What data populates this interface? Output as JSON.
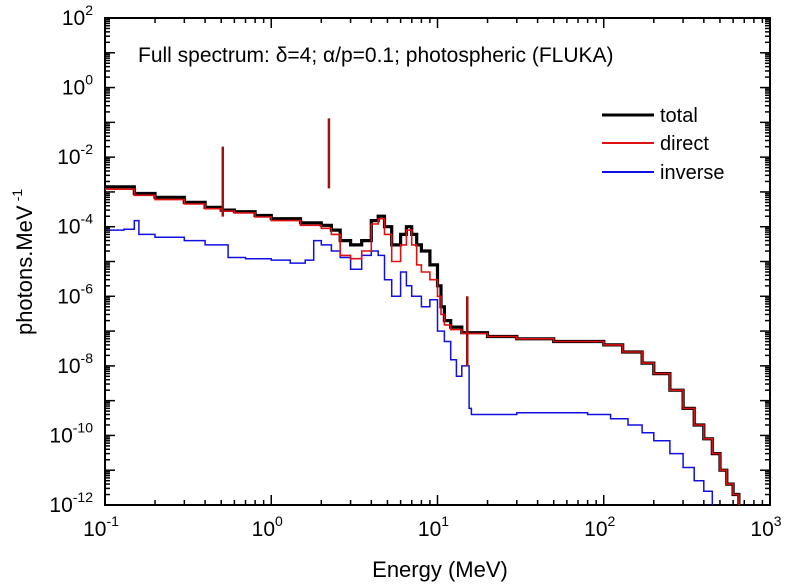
{
  "chart_data": {
    "type": "line",
    "title": "",
    "annotation": "Full spectrum: δ=4; α/p=0.1; photospheric (FLUKA)",
    "xlabel": "Energy (MeV)",
    "ylabel": "photons.MeV",
    "ylabel_exponent": "-1",
    "xscale": "log",
    "yscale": "log",
    "xlim": [
      0.1,
      1000
    ],
    "ylim": [
      1e-12,
      100
    ],
    "x_ticks": [
      {
        "base": "10",
        "exp": "-1",
        "value": 0.1
      },
      {
        "base": "10",
        "exp": "0",
        "value": 1
      },
      {
        "base": "10",
        "exp": "1",
        "value": 10
      },
      {
        "base": "10",
        "exp": "2",
        "value": 100
      },
      {
        "base": "10",
        "exp": "3",
        "value": 1000
      }
    ],
    "y_ticks": [
      {
        "base": "10",
        "exp": "2",
        "value": 100
      },
      {
        "base": "10",
        "exp": "0",
        "value": 1
      },
      {
        "base": "10",
        "exp": "-2",
        "value": 0.01
      },
      {
        "base": "10",
        "exp": "-4",
        "value": 0.0001
      },
      {
        "base": "10",
        "exp": "-6",
        "value": 1e-06
      },
      {
        "base": "10",
        "exp": "-8",
        "value": 1e-08
      },
      {
        "base": "10",
        "exp": "-10",
        "value": 1e-10
      },
      {
        "base": "10",
        "exp": "-12",
        "value": 1e-12
      }
    ],
    "grid": false,
    "legend_position": "top-right",
    "series": [
      {
        "name": "total",
        "color": "#000000",
        "points": [
          [
            0.1,
            0.0014
          ],
          [
            0.15,
            0.0009
          ],
          [
            0.2,
            0.0007
          ],
          [
            0.3,
            0.0005
          ],
          [
            0.4,
            0.00036
          ],
          [
            0.5,
            0.0003
          ],
          [
            0.6,
            0.00027
          ],
          [
            0.8,
            0.00021
          ],
          [
            1.0,
            0.00017
          ],
          [
            1.5,
            0.00013
          ],
          [
            2.0,
            0.00011
          ],
          [
            2.3,
            8e-05
          ],
          [
            2.6,
            4e-05
          ],
          [
            3.0,
            3e-05
          ],
          [
            3.5,
            4e-05
          ],
          [
            4.0,
            0.00015
          ],
          [
            4.4,
            0.0002
          ],
          [
            4.8,
            0.0001
          ],
          [
            5.3,
            3e-05
          ],
          [
            6.0,
            6e-05
          ],
          [
            6.5,
            0.0001
          ],
          [
            7.0,
            6e-05
          ],
          [
            7.5,
            3e-05
          ],
          [
            8.0,
            2e-05
          ],
          [
            9.0,
            8e-06
          ],
          [
            10.0,
            2e-06
          ],
          [
            10.5,
            5e-07
          ],
          [
            11.0,
            2e-07
          ],
          [
            12.0,
            1.3e-07
          ],
          [
            14.0,
            9e-08
          ],
          [
            20.0,
            7e-08
          ],
          [
            30.0,
            6e-08
          ],
          [
            50.0,
            5e-08
          ],
          [
            70.0,
            5e-08
          ],
          [
            100.0,
            4e-08
          ],
          [
            130.0,
            2.5e-08
          ],
          [
            170.0,
            1.2e-08
          ],
          [
            200.0,
            6e-09
          ],
          [
            250.0,
            2e-09
          ],
          [
            300.0,
            6e-10
          ],
          [
            350.0,
            2e-10
          ],
          [
            400.0,
            8e-11
          ],
          [
            450.0,
            3e-11
          ],
          [
            500.0,
            1e-11
          ],
          [
            550.0,
            4e-12
          ],
          [
            600.0,
            2e-12
          ],
          [
            650.0,
            1e-12
          ]
        ]
      },
      {
        "name": "direct",
        "color": "#e01010",
        "points": [
          [
            0.1,
            0.0012
          ],
          [
            0.15,
            0.0008
          ],
          [
            0.2,
            0.0006
          ],
          [
            0.3,
            0.00045
          ],
          [
            0.4,
            0.00033
          ],
          [
            0.5,
            0.00028
          ],
          [
            0.6,
            0.00025
          ],
          [
            0.8,
            0.00019
          ],
          [
            1.0,
            0.00015
          ],
          [
            1.5,
            0.00011
          ],
          [
            2.0,
            9e-05
          ],
          [
            2.3,
            6e-05
          ],
          [
            2.6,
            1.5e-05
          ],
          [
            3.0,
            1.2e-05
          ],
          [
            3.5,
            2e-05
          ],
          [
            4.0,
            0.00012
          ],
          [
            4.4,
            0.00017
          ],
          [
            4.8,
            6e-05
          ],
          [
            5.3,
            1e-05
          ],
          [
            6.0,
            3e-05
          ],
          [
            6.5,
            8e-05
          ],
          [
            7.0,
            3e-05
          ],
          [
            7.5,
            8e-06
          ],
          [
            8.0,
            5e-06
          ],
          [
            9.0,
            3e-06
          ],
          [
            10.0,
            1e-06
          ],
          [
            10.5,
            3e-07
          ],
          [
            11.0,
            1.5e-07
          ],
          [
            12.0,
            1.1e-07
          ],
          [
            14.0,
            8.5e-08
          ],
          [
            20.0,
            7e-08
          ],
          [
            30.0,
            6e-08
          ],
          [
            50.0,
            5e-08
          ],
          [
            70.0,
            5e-08
          ],
          [
            100.0,
            4e-08
          ],
          [
            130.0,
            2.5e-08
          ],
          [
            170.0,
            1.2e-08
          ],
          [
            200.0,
            6e-09
          ],
          [
            250.0,
            2e-09
          ],
          [
            300.0,
            6e-10
          ],
          [
            350.0,
            2e-10
          ],
          [
            400.0,
            8e-11
          ],
          [
            450.0,
            3e-11
          ],
          [
            500.0,
            1e-11
          ],
          [
            550.0,
            4e-12
          ],
          [
            600.0,
            2e-12
          ],
          [
            650.0,
            1e-12
          ]
        ]
      },
      {
        "name": "inverse",
        "color": "#1010e0",
        "points": [
          [
            0.1,
            8e-05
          ],
          [
            0.13,
            8.5e-05
          ],
          [
            0.15,
            0.00015
          ],
          [
            0.16,
            6e-05
          ],
          [
            0.2,
            5e-05
          ],
          [
            0.3,
            4e-05
          ],
          [
            0.4,
            3e-05
          ],
          [
            0.5,
            3e-05
          ],
          [
            0.55,
            1.3e-05
          ],
          [
            0.7,
            1.2e-05
          ],
          [
            1.0,
            1.1e-05
          ],
          [
            1.3,
            9e-06
          ],
          [
            1.6,
            1.1e-05
          ],
          [
            1.8,
            4e-05
          ],
          [
            2.0,
            3e-05
          ],
          [
            2.3,
            2e-05
          ],
          [
            2.6,
            1.3e-05
          ],
          [
            3.0,
            6e-06
          ],
          [
            3.5,
            1.5e-05
          ],
          [
            4.0,
            2e-05
          ],
          [
            4.4,
            1.5e-05
          ],
          [
            4.8,
            3e-06
          ],
          [
            5.3,
            1e-06
          ],
          [
            6.0,
            5e-06
          ],
          [
            6.5,
            2e-06
          ],
          [
            7.0,
            1e-06
          ],
          [
            8.0,
            5e-07
          ],
          [
            9.0,
            8e-07
          ],
          [
            10.0,
            1e-07
          ],
          [
            11.0,
            5e-08
          ],
          [
            12.0,
            1.5e-08
          ],
          [
            13.0,
            5e-09
          ],
          [
            14.0,
            1e-08
          ],
          [
            15.0,
            1e-08
          ],
          [
            15.5,
            6e-10
          ],
          [
            16.0,
            4e-10
          ],
          [
            30.0,
            4.5e-10
          ],
          [
            50.0,
            4.5e-10
          ],
          [
            80.0,
            4e-10
          ],
          [
            110.0,
            3e-10
          ],
          [
            140.0,
            2e-10
          ],
          [
            170.0,
            1.2e-10
          ],
          [
            200.0,
            7e-11
          ],
          [
            250.0,
            3e-11
          ],
          [
            300.0,
            1.2e-11
          ],
          [
            350.0,
            5e-12
          ],
          [
            400.0,
            2.5e-12
          ],
          [
            450.0,
            1e-12
          ]
        ]
      }
    ],
    "spikes": [
      {
        "x": 0.511,
        "y": 0.02,
        "color": "#a01010"
      },
      {
        "x": 2.223,
        "y": 0.13,
        "color": "#a01010"
      },
      {
        "x": 15.1,
        "y": 1e-06,
        "color": "#a01010"
      }
    ]
  }
}
